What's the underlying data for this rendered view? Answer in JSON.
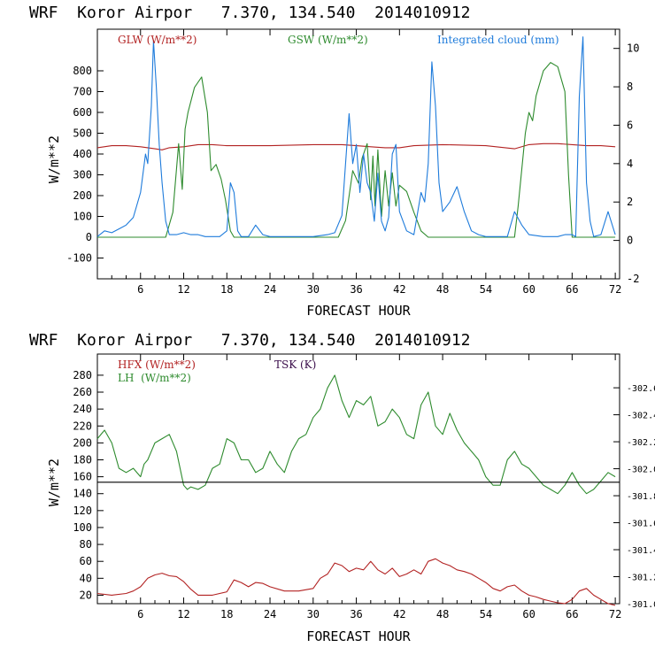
{
  "chart_data": [
    {
      "type": "line",
      "title": "WRF  Koror Airpor   7.370, 134.540  2014010912",
      "xlabel": "FORECAST HOUR",
      "ylabel": "W/m**2",
      "xlim": [
        0,
        72.6
      ],
      "ylim": [
        -200,
        1000
      ],
      "y2lim": [
        -2,
        11
      ],
      "x_ticks": [
        6,
        12,
        18,
        24,
        30,
        36,
        42,
        48,
        54,
        60,
        66,
        72
      ],
      "y_ticks": [
        -100,
        0,
        100,
        200,
        300,
        400,
        500,
        600,
        700,
        800
      ],
      "y2_ticks": [
        -2,
        0,
        2,
        4,
        6,
        8,
        10
      ],
      "series": [
        {
          "name": "GLW (W/m**2)",
          "color": "#b22222",
          "axis": "left",
          "x": [
            0,
            2,
            4,
            6,
            8,
            9,
            10,
            12,
            14,
            16,
            18,
            20,
            24,
            30,
            34,
            36,
            38,
            40,
            42,
            44,
            48,
            54,
            58,
            60,
            62,
            64,
            66,
            68,
            70,
            72
          ],
          "y": [
            430,
            440,
            440,
            435,
            425,
            420,
            430,
            435,
            445,
            445,
            440,
            440,
            440,
            445,
            445,
            440,
            435,
            430,
            430,
            440,
            445,
            440,
            425,
            445,
            450,
            450,
            445,
            440,
            440,
            435
          ]
        },
        {
          "name": "GSW (W/m**2)",
          "color": "#2e8b2e",
          "axis": "left",
          "x": [
            0,
            9.5,
            10.5,
            11.3,
            11.8,
            12.2,
            12.6,
            13.5,
            14.5,
            15.3,
            15.8,
            16.5,
            17.2,
            17.8,
            18.5,
            19,
            33.5,
            34.5,
            35.5,
            36.3,
            36.8,
            37.5,
            38,
            38.3,
            38.6,
            39,
            39.5,
            40,
            40.5,
            41,
            41.5,
            42,
            43,
            44,
            45,
            46,
            58,
            58.5,
            59.5,
            60,
            60.5,
            61,
            62,
            63,
            64,
            65,
            65.5,
            66,
            72
          ],
          "y": [
            0,
            0,
            120,
            450,
            230,
            520,
            600,
            720,
            770,
            600,
            320,
            350,
            280,
            180,
            30,
            0,
            0,
            80,
            320,
            260,
            380,
            450,
            180,
            390,
            150,
            420,
            100,
            320,
            150,
            310,
            150,
            250,
            220,
            120,
            30,
            0,
            0,
            150,
            500,
            600,
            560,
            680,
            800,
            840,
            820,
            700,
            300,
            0,
            0
          ]
        },
        {
          "name": "Integrated cloud (mm)",
          "color": "#1e7bdb",
          "axis": "right",
          "x": [
            0,
            1,
            2,
            3,
            4,
            5,
            6,
            6.7,
            7,
            7.5,
            7.8,
            8.2,
            8.6,
            9,
            9.5,
            10,
            11,
            12,
            13,
            14,
            15,
            17,
            18,
            18.5,
            19,
            19.5,
            20,
            21,
            22,
            23,
            24,
            25,
            26,
            28,
            30,
            32,
            33,
            34,
            34.5,
            35,
            35.5,
            36,
            36.5,
            37,
            37.5,
            38,
            38.5,
            39,
            39.5,
            40,
            40.5,
            41,
            41.5,
            42,
            43,
            44,
            45,
            45.5,
            46,
            46.5,
            47,
            47.5,
            48,
            49,
            50,
            51,
            52,
            53,
            54,
            56,
            57,
            58,
            59,
            60,
            62,
            64,
            65,
            66,
            66.5,
            67,
            67.5,
            68,
            68.5,
            69,
            70,
            71,
            72
          ],
          "y": [
            0.2,
            0.5,
            0.4,
            0.6,
            0.8,
            1.2,
            2.5,
            4.5,
            4,
            7,
            10.4,
            8,
            5,
            3,
            1,
            0.3,
            0.3,
            0.4,
            0.3,
            0.3,
            0.2,
            0.2,
            0.5,
            3,
            2.5,
            0.5,
            0.2,
            0.2,
            0.8,
            0.3,
            0.2,
            0.2,
            0.2,
            0.2,
            0.2,
            0.3,
            0.4,
            1.3,
            4,
            6.6,
            4,
            5,
            2.5,
            4.5,
            3,
            2.5,
            1,
            3.5,
            1,
            0.5,
            1.2,
            4.5,
            5,
            1.5,
            0.5,
            0.3,
            2.5,
            2,
            4,
            9.3,
            7,
            3,
            1.5,
            2,
            2.8,
            1.5,
            0.5,
            0.3,
            0.2,
            0.2,
            0.2,
            1.5,
            0.8,
            0.3,
            0.2,
            0.2,
            0.3,
            0.3,
            0.2,
            7.5,
            10.6,
            3,
            1,
            0.2,
            0.3,
            1.5,
            0.3
          ]
        }
      ]
    },
    {
      "type": "line",
      "title": "WRF  Koror Airpor   7.370, 134.540  2014010912",
      "xlabel": "FORECAST HOUR",
      "ylabel": "W/m**2",
      "xlim": [
        0,
        72.6
      ],
      "ylim": [
        10,
        305
      ],
      "y2lim": [
        301.0,
        302.85
      ],
      "x_ticks": [
        6,
        12,
        18,
        24,
        30,
        36,
        42,
        48,
        54,
        60,
        66,
        72
      ],
      "y_ticks": [
        20,
        40,
        60,
        80,
        100,
        120,
        140,
        160,
        180,
        200,
        220,
        240,
        260,
        280
      ],
      "y2_ticks": [
        "301.0",
        "301.2",
        "301.4",
        "301.6",
        "301.8",
        "302.0",
        "302.2",
        "302.4",
        "302.6"
      ],
      "y2_tick_values": [
        301.0,
        301.2,
        301.4,
        301.6,
        301.8,
        302.0,
        302.2,
        302.4,
        302.6
      ],
      "series": [
        {
          "name": "HFX (W/m**2)",
          "color": "#b22222",
          "axis": "left",
          "x": [
            0,
            2,
            4,
            5,
            6,
            7,
            8,
            9,
            10,
            11,
            12,
            13,
            14,
            16,
            18,
            19,
            20,
            21,
            22,
            23,
            24,
            26,
            28,
            30,
            31,
            32,
            33,
            34,
            35,
            36,
            37,
            38,
            39,
            40,
            41,
            42,
            43,
            44,
            45,
            46,
            47,
            48,
            49,
            50,
            51,
            52,
            53,
            54,
            55,
            56,
            57,
            58,
            59,
            60,
            61,
            62,
            63,
            64,
            65,
            66,
            67,
            68,
            69,
            70,
            71,
            72
          ],
          "y": [
            22,
            20,
            22,
            25,
            30,
            40,
            44,
            46,
            43,
            42,
            36,
            27,
            20,
            20,
            24,
            38,
            35,
            30,
            35,
            34,
            30,
            25,
            25,
            28,
            40,
            45,
            58,
            55,
            48,
            52,
            50,
            60,
            50,
            45,
            52,
            42,
            45,
            50,
            45,
            60,
            63,
            58,
            55,
            50,
            48,
            45,
            40,
            35,
            28,
            25,
            30,
            32,
            25,
            20,
            18,
            15,
            13,
            11,
            10,
            15,
            25,
            28,
            20,
            15,
            10,
            8
          ]
        },
        {
          "name": "LH  (W/m**2)",
          "color": "#2e8b2e",
          "axis": "left",
          "x": [
            0,
            1,
            2,
            3,
            4,
            5,
            6,
            6.5,
            7,
            8,
            9,
            10,
            11,
            12,
            12.5,
            13,
            14,
            15,
            16,
            17,
            18,
            19,
            20,
            21,
            22,
            23,
            24,
            25,
            26,
            27,
            28,
            29,
            30,
            31,
            32,
            33,
            34,
            35,
            36,
            37,
            38,
            39,
            40,
            41,
            42,
            43,
            44,
            45,
            46,
            47,
            48,
            49,
            50,
            51,
            52,
            53,
            54,
            55,
            56,
            57,
            58,
            59,
            60,
            61,
            62,
            63,
            64,
            65,
            66,
            67,
            68,
            69,
            70,
            71,
            72
          ],
          "y": [
            205,
            215,
            200,
            170,
            165,
            170,
            160,
            175,
            180,
            200,
            205,
            210,
            190,
            150,
            145,
            148,
            145,
            150,
            170,
            175,
            205,
            200,
            180,
            180,
            165,
            170,
            190,
            175,
            165,
            190,
            205,
            210,
            230,
            240,
            265,
            280,
            250,
            230,
            250,
            245,
            255,
            220,
            225,
            240,
            230,
            210,
            205,
            245,
            260,
            220,
            210,
            235,
            215,
            200,
            190,
            180,
            160,
            150,
            150,
            180,
            190,
            175,
            170,
            160,
            150,
            145,
            140,
            150,
            165,
            150,
            140,
            145,
            155,
            165,
            160
          ]
        },
        {
          "name": "TSK (K)",
          "color": "#000000",
          "axis": "right",
          "x": [
            0,
            72.6
          ],
          "y": [
            301.9,
            301.9
          ]
        }
      ]
    }
  ]
}
